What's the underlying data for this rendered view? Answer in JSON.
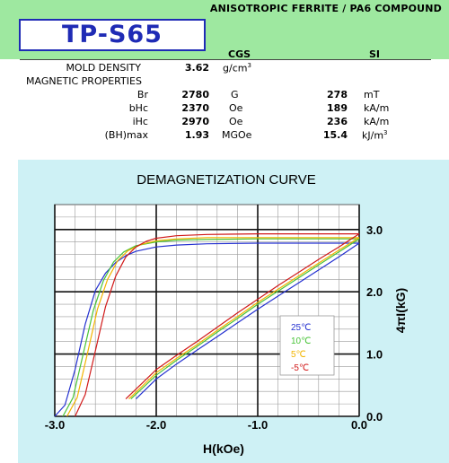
{
  "header": {
    "material": "ANISOTROPIC FERRITE / PA6 COMPOUND",
    "model": "TP-S65",
    "unit_cgs": "CGS",
    "unit_si": "SI",
    "band_color": "#9ee8a0",
    "model_color": "#1f2bb5"
  },
  "properties": {
    "density_label": "MOLD DENSITY",
    "density_value": "3.62",
    "density_unit": "g/cm",
    "density_unit_exp": "3",
    "section_label": "MAGNETIC PROPERTIES",
    "rows": [
      {
        "label": "Br",
        "cgs_value": "2780",
        "cgs_unit": "G",
        "si_value": "278",
        "si_unit": "mT",
        "si_unit_exp": ""
      },
      {
        "label": "bHc",
        "cgs_value": "2370",
        "cgs_unit": "Oe",
        "si_value": "189",
        "si_unit": "kA/m",
        "si_unit_exp": ""
      },
      {
        "label": "iHc",
        "cgs_value": "2970",
        "cgs_unit": "Oe",
        "si_value": "236",
        "si_unit": "kA/m",
        "si_unit_exp": ""
      },
      {
        "label": "(BH)max",
        "cgs_value": "1.93",
        "cgs_unit": "MGOe",
        "si_value": "15.4",
        "si_unit": "kJ/m",
        "si_unit_exp": "3"
      }
    ]
  },
  "chart_data": {
    "type": "line",
    "title": "DEMAGNETIZATION CURVE",
    "xlabel": "H(kOe)",
    "ylabel": "4πI(kG)",
    "xlim": [
      -3.0,
      0.0
    ],
    "ylim": [
      0.0,
      3.4
    ],
    "x_ticks": [
      "-3.0",
      "-2.0",
      "-1.0",
      "0.0"
    ],
    "y_ticks": [
      "0.0",
      "1.0",
      "2.0",
      "3.0"
    ],
    "grid": true,
    "legend_position": "lower-right",
    "background": "#cef1f5",
    "series": [
      {
        "name": "25℃",
        "color": "#2431d0",
        "intrinsic": [
          [
            -3.0,
            0.0
          ],
          [
            -2.9,
            0.18
          ],
          [
            -2.8,
            0.75
          ],
          [
            -2.7,
            1.48
          ],
          [
            -2.6,
            2.02
          ],
          [
            -2.5,
            2.3
          ],
          [
            -2.4,
            2.47
          ],
          [
            -2.3,
            2.58
          ],
          [
            -2.2,
            2.65
          ],
          [
            -2.0,
            2.72
          ],
          [
            -1.8,
            2.75
          ],
          [
            -1.5,
            2.77
          ],
          [
            -1.0,
            2.78
          ],
          [
            -0.5,
            2.78
          ],
          [
            0.0,
            2.78
          ]
        ],
        "normal": [
          [
            -2.2,
            0.28
          ],
          [
            -2.0,
            0.6
          ],
          [
            -1.8,
            0.84
          ],
          [
            -1.6,
            1.06
          ],
          [
            -1.4,
            1.28
          ],
          [
            -1.2,
            1.5
          ],
          [
            -1.0,
            1.72
          ],
          [
            -0.8,
            1.93
          ],
          [
            -0.6,
            2.14
          ],
          [
            -0.4,
            2.35
          ],
          [
            -0.2,
            2.56
          ],
          [
            0.0,
            2.78
          ]
        ]
      },
      {
        "name": "10℃",
        "color": "#48c438",
        "intrinsic": [
          [
            -2.92,
            0.0
          ],
          [
            -2.82,
            0.3
          ],
          [
            -2.72,
            1.0
          ],
          [
            -2.62,
            1.7
          ],
          [
            -2.52,
            2.18
          ],
          [
            -2.42,
            2.48
          ],
          [
            -2.32,
            2.64
          ],
          [
            -2.2,
            2.74
          ],
          [
            -2.0,
            2.8
          ],
          [
            -1.8,
            2.83
          ],
          [
            -1.5,
            2.84
          ],
          [
            -1.0,
            2.85
          ],
          [
            -0.5,
            2.85
          ],
          [
            0.0,
            2.85
          ]
        ],
        "normal": [
          [
            -2.25,
            0.28
          ],
          [
            -2.0,
            0.66
          ],
          [
            -1.8,
            0.9
          ],
          [
            -1.6,
            1.12
          ],
          [
            -1.4,
            1.35
          ],
          [
            -1.2,
            1.57
          ],
          [
            -1.0,
            1.8
          ],
          [
            -0.8,
            2.01
          ],
          [
            -0.6,
            2.22
          ],
          [
            -0.4,
            2.43
          ],
          [
            -0.2,
            2.64
          ],
          [
            0.0,
            2.85
          ]
        ]
      },
      {
        "name": "5℃",
        "color": "#f2b400",
        "intrinsic": [
          [
            -2.88,
            0.0
          ],
          [
            -2.78,
            0.3
          ],
          [
            -2.68,
            1.0
          ],
          [
            -2.58,
            1.72
          ],
          [
            -2.48,
            2.2
          ],
          [
            -2.38,
            2.5
          ],
          [
            -2.28,
            2.66
          ],
          [
            -2.15,
            2.76
          ],
          [
            -2.0,
            2.82
          ],
          [
            -1.8,
            2.85
          ],
          [
            -1.5,
            2.87
          ],
          [
            -1.0,
            2.87
          ],
          [
            -0.5,
            2.87
          ],
          [
            0.0,
            2.87
          ]
        ],
        "normal": [
          [
            -2.27,
            0.28
          ],
          [
            -2.0,
            0.7
          ],
          [
            -1.8,
            0.93
          ],
          [
            -1.6,
            1.15
          ],
          [
            -1.4,
            1.38
          ],
          [
            -1.2,
            1.6
          ],
          [
            -1.0,
            1.83
          ],
          [
            -0.8,
            2.04
          ],
          [
            -0.6,
            2.25
          ],
          [
            -0.4,
            2.46
          ],
          [
            -0.2,
            2.67
          ],
          [
            0.0,
            2.87
          ]
        ]
      },
      {
        "name": "-5℃",
        "color": "#d11a1a",
        "intrinsic": [
          [
            -2.8,
            0.0
          ],
          [
            -2.7,
            0.35
          ],
          [
            -2.6,
            1.05
          ],
          [
            -2.5,
            1.76
          ],
          [
            -2.4,
            2.25
          ],
          [
            -2.3,
            2.56
          ],
          [
            -2.2,
            2.72
          ],
          [
            -2.1,
            2.81
          ],
          [
            -2.0,
            2.86
          ],
          [
            -1.8,
            2.9
          ],
          [
            -1.5,
            2.92
          ],
          [
            -1.0,
            2.93
          ],
          [
            -0.5,
            2.93
          ],
          [
            0.0,
            2.93
          ]
        ],
        "normal": [
          [
            -2.3,
            0.28
          ],
          [
            -2.0,
            0.75
          ],
          [
            -1.8,
            0.98
          ],
          [
            -1.6,
            1.2
          ],
          [
            -1.4,
            1.43
          ],
          [
            -1.2,
            1.66
          ],
          [
            -1.0,
            1.88
          ],
          [
            -0.8,
            2.1
          ],
          [
            -0.6,
            2.31
          ],
          [
            -0.4,
            2.52
          ],
          [
            -0.2,
            2.72
          ],
          [
            0.0,
            2.93
          ]
        ]
      }
    ]
  }
}
